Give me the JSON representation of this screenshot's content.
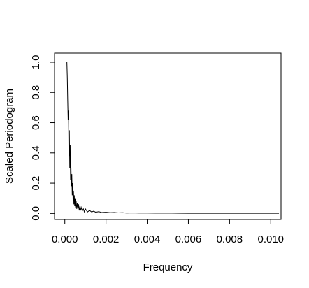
{
  "chart_data": {
    "type": "line",
    "title": "",
    "xlabel": "Frequency",
    "ylabel": "Scaled Periodogram",
    "xlim": [
      -0.0005,
      0.0105
    ],
    "ylim": [
      -0.04,
      1.06
    ],
    "xticks": [
      "0.000",
      "0.002",
      "0.004",
      "0.006",
      "0.008",
      "0.010"
    ],
    "xtick_values": [
      0.0,
      0.002,
      0.004,
      0.006,
      0.008,
      0.01
    ],
    "yticks": [
      "0.0",
      "0.2",
      "0.4",
      "0.6",
      "0.8",
      "1.0"
    ],
    "ytick_values": [
      0.0,
      0.2,
      0.4,
      0.6,
      0.8,
      1.0
    ],
    "grid": false,
    "legend": "none",
    "line_color": "#000000",
    "series": [
      {
        "x": [
          0.0001,
          0.00012,
          0.00014,
          0.00016,
          0.00018,
          0.0002,
          0.00022,
          0.00024,
          0.00026,
          0.00028,
          0.0003,
          0.00032,
          0.00034,
          0.00036,
          0.00038,
          0.0004,
          0.00042,
          0.00044,
          0.00046,
          0.00048,
          0.0005,
          0.00052,
          0.00055,
          0.00058,
          0.00061,
          0.00064,
          0.00067,
          0.0007,
          0.00074,
          0.00078,
          0.00082,
          0.00086,
          0.0009,
          0.00095,
          0.001,
          0.0011,
          0.0012,
          0.0013,
          0.0014,
          0.0015,
          0.00165,
          0.0018,
          0.002,
          0.0022,
          0.0024,
          0.0026,
          0.0028,
          0.003,
          0.0033,
          0.0036,
          0.004,
          0.0044,
          0.0048,
          0.0052,
          0.006,
          0.007,
          0.008,
          0.009,
          0.01,
          0.0104
        ],
        "y": [
          1.0,
          0.9,
          0.75,
          0.62,
          0.68,
          0.38,
          0.55,
          0.3,
          0.45,
          0.22,
          0.3,
          0.18,
          0.26,
          0.12,
          0.2,
          0.09,
          0.15,
          0.06,
          0.12,
          0.05,
          0.1,
          0.04,
          0.08,
          0.03,
          0.07,
          0.03,
          0.06,
          0.02,
          0.05,
          0.02,
          0.04,
          0.02,
          0.03,
          0.01,
          0.03,
          0.01,
          0.02,
          0.01,
          0.015,
          0.008,
          0.012,
          0.006,
          0.008,
          0.005,
          0.006,
          0.004,
          0.005,
          0.003,
          0.004,
          0.003,
          0.003,
          0.002,
          0.002,
          0.002,
          0.001,
          0.001,
          0.001,
          0.001,
          0.001,
          0.001
        ]
      }
    ]
  }
}
